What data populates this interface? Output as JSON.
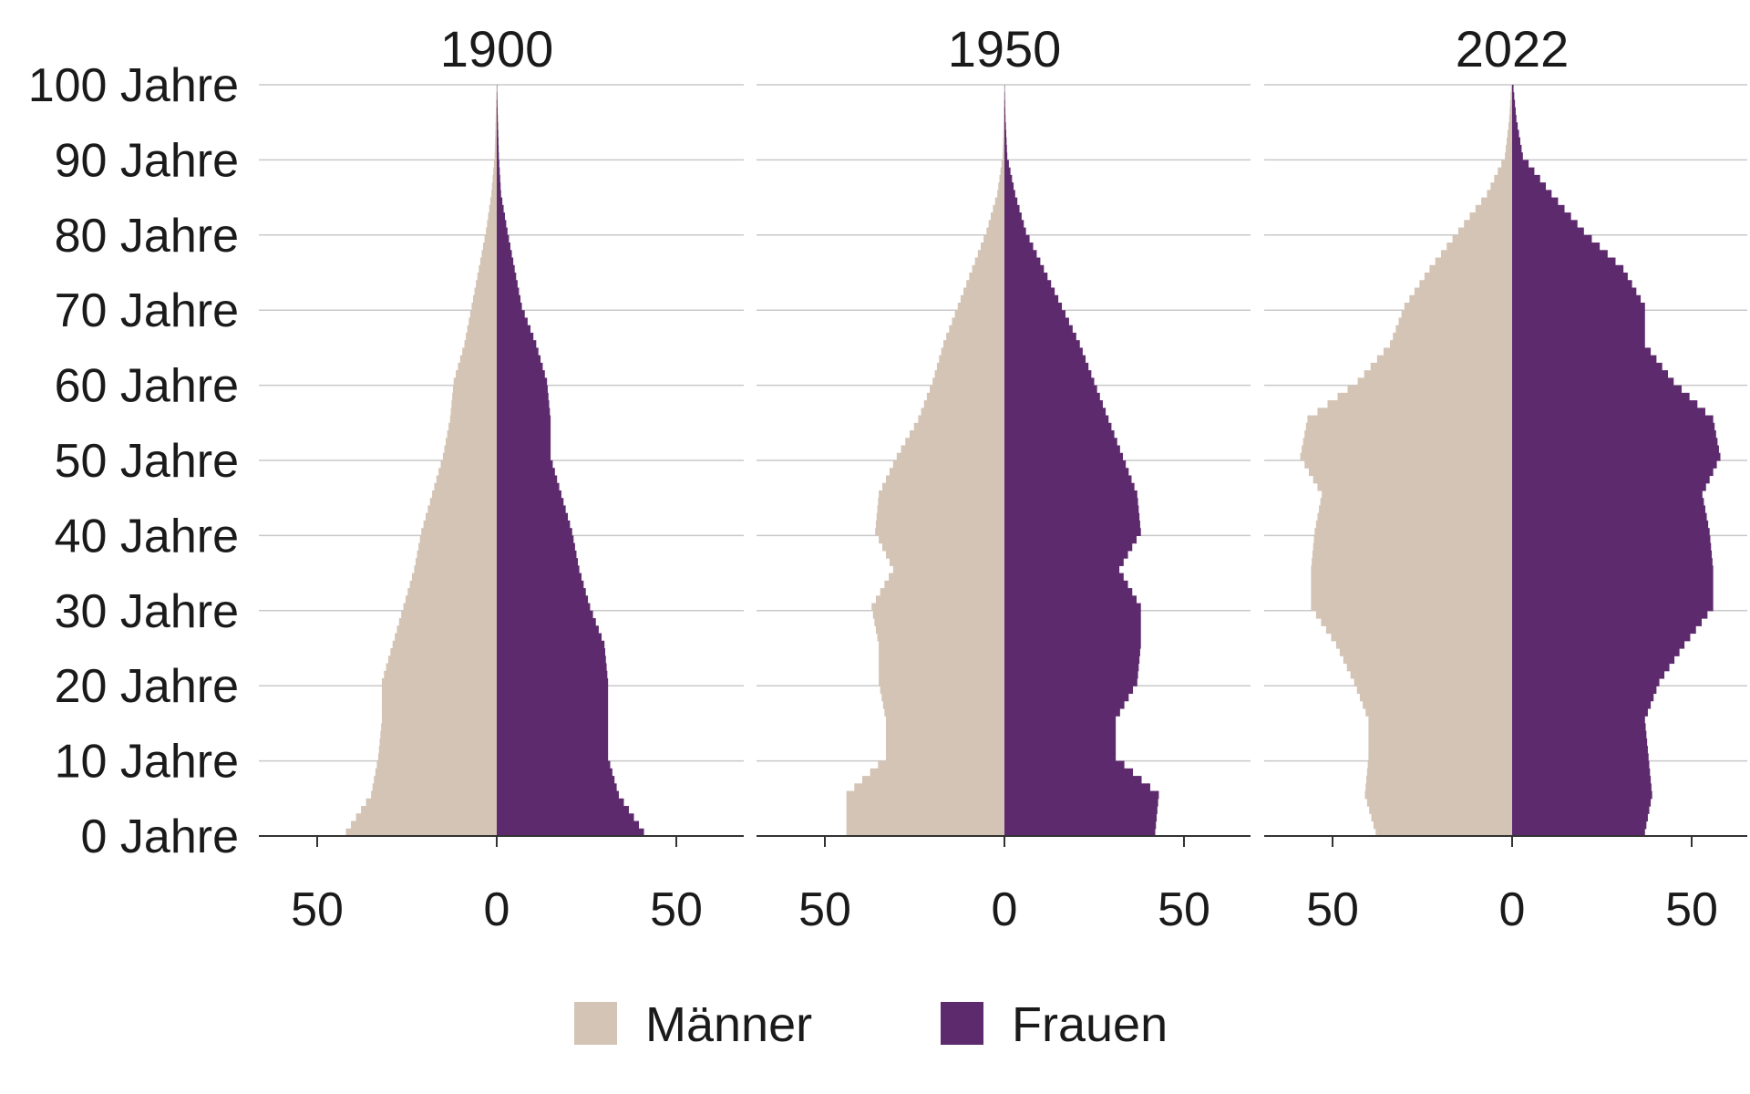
{
  "chart_data": {
    "type": "bar",
    "orientation": "horizontal",
    "layout": "population-pyramid",
    "y_axis": {
      "ticks": [
        0,
        10,
        20,
        30,
        40,
        50,
        60,
        70,
        80,
        90,
        100
      ],
      "tick_labels": [
        "0 Jahre",
        "10 Jahre",
        "20 Jahre",
        "30 Jahre",
        "40 Jahre",
        "50 Jahre",
        "60 Jahre",
        "70 Jahre",
        "80 Jahre",
        "90 Jahre",
        "100 Jahre"
      ],
      "range": [
        0,
        100
      ]
    },
    "x_axis": {
      "range": [
        -70,
        70
      ],
      "ticks": [
        -50,
        0,
        50
      ],
      "tick_labels": [
        "50",
        "0",
        "50"
      ]
    },
    "grid": true,
    "legend": {
      "placement": "bottom",
      "items": [
        {
          "label": "Männer",
          "color": "#d4c4b5"
        },
        {
          "label": "Frauen",
          "color": "#5e2a6e"
        }
      ]
    },
    "panels": [
      {
        "title": "1900",
        "ages": [
          0,
          5,
          10,
          15,
          20,
          25,
          30,
          35,
          40,
          45,
          50,
          55,
          60,
          65,
          70,
          75,
          80,
          85,
          90,
          95,
          99
        ],
        "maenner": [
          42,
          35,
          33,
          32,
          32,
          29,
          26,
          23,
          21,
          18,
          15,
          13,
          12,
          9,
          7,
          5,
          3,
          1.5,
          0.6,
          0.3,
          0.1
        ],
        "frauen": [
          41,
          34,
          31,
          31,
          31,
          30,
          26,
          23,
          21,
          18,
          15,
          15,
          14,
          11,
          7,
          5,
          3,
          1.2,
          0.6,
          0.3,
          0.1
        ]
      },
      {
        "title": "1950",
        "ages": [
          0,
          5,
          10,
          15,
          20,
          25,
          30,
          35,
          40,
          45,
          50,
          55,
          60,
          65,
          70,
          75,
          80,
          85,
          90,
          95,
          99
        ],
        "maenner": [
          44,
          44,
          33,
          33,
          35,
          35,
          37,
          31,
          36,
          35,
          30,
          24,
          20,
          17,
          13,
          9,
          5,
          2,
          0.5,
          0.2,
          0.1
        ],
        "frauen": [
          42,
          43,
          31,
          31,
          37,
          38,
          38,
          32,
          38,
          37,
          33,
          29,
          25,
          21,
          16,
          11,
          6,
          3,
          0.8,
          0.3,
          0.1
        ]
      },
      {
        "title": "2022",
        "ages": [
          0,
          5,
          10,
          15,
          20,
          25,
          30,
          35,
          40,
          45,
          50,
          55,
          60,
          65,
          70,
          75,
          80,
          85,
          90,
          95,
          99
        ],
        "maenner": [
          38,
          41,
          40,
          40,
          44,
          49,
          56,
          56,
          55,
          53,
          59,
          57,
          43,
          34,
          30,
          23,
          15,
          7,
          2,
          0.8,
          0.3
        ],
        "frauen": [
          37,
          39,
          38,
          37,
          41,
          48,
          56,
          56,
          55,
          53,
          58,
          56,
          45,
          37,
          37,
          31,
          20,
          11,
          3,
          1.2,
          0.4
        ]
      }
    ]
  }
}
